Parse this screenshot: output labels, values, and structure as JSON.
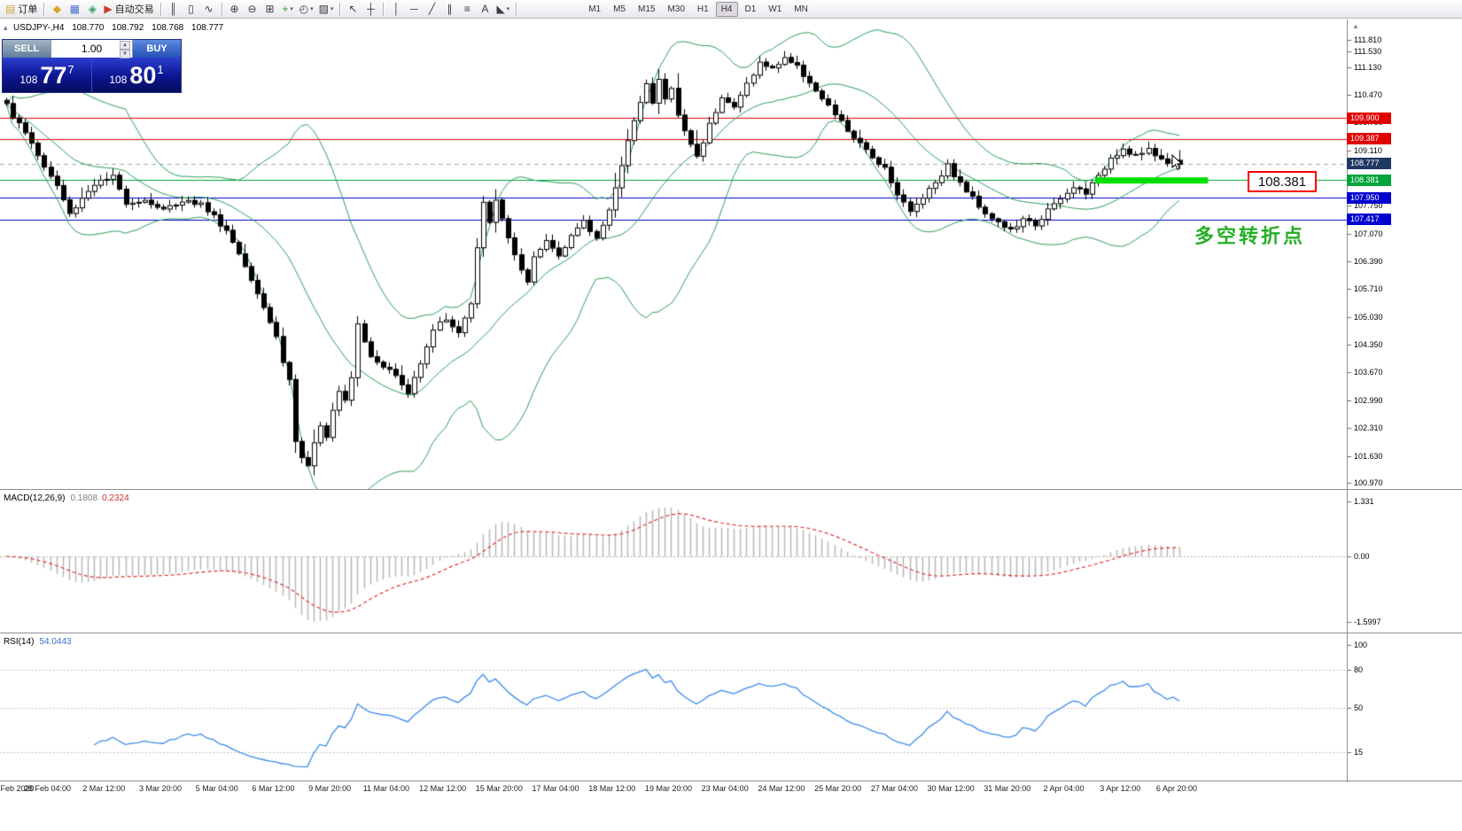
{
  "colors": {
    "up_candle": "#ffffff",
    "down_candle": "#000000",
    "candle_border": "#000000",
    "bollinger": "#2ca05a",
    "macd_hist": "#b4b4b4",
    "macd_signal": "#e03030",
    "rsi_line": "#3b8beb",
    "highlight_green": "#00dd00",
    "level_red": "#e00000",
    "level_blue": "#0000d0",
    "level_green": "#00a43b",
    "bid_badge": "#1f3864"
  },
  "toolbar": {
    "items": [
      {
        "name": "new-order-button",
        "glyph": "▤",
        "glyph_color": "#caa53c",
        "label": "订单"
      },
      {
        "type": "sep"
      },
      {
        "name": "market-watch-button",
        "glyph": "◆",
        "glyph_color": "#d9a520"
      },
      {
        "name": "data-window-button",
        "glyph": "▦",
        "glyph_color": "#4a6fd0"
      },
      {
        "name": "navigator-button",
        "glyph": "◈",
        "glyph_color": "#2f9e68"
      },
      {
        "name": "autotrade-button",
        "glyph": "▶",
        "glyph_color": "#cf3a2a",
        "label": "自动交易"
      },
      {
        "type": "sep"
      },
      {
        "name": "chart-bars-button",
        "glyph": "║"
      },
      {
        "name": "chart-candles-button",
        "glyph": "▯"
      },
      {
        "name": "chart-line-button",
        "glyph": "∿"
      },
      {
        "type": "sep"
      },
      {
        "name": "zoom-in-button",
        "glyph": "⊕"
      },
      {
        "name": "zoom-out-button",
        "glyph": "⊖"
      },
      {
        "name": "tile-windows-button",
        "glyph": "⊞"
      },
      {
        "name": "indicators-button",
        "glyph": "+",
        "glyph_color": "#1d9e3c",
        "caret": true
      },
      {
        "name": "periods-button",
        "glyph": "◴",
        "caret": true
      },
      {
        "name": "templates-button",
        "glyph": "▨",
        "caret": true
      },
      {
        "type": "sep"
      },
      {
        "name": "cursor-button",
        "glyph": "↖"
      },
      {
        "name": "crosshair-button",
        "glyph": "┼"
      },
      {
        "type": "sep"
      },
      {
        "name": "vertical-line-button",
        "glyph": "│"
      },
      {
        "name": "horizontal-line-button",
        "glyph": "─"
      },
      {
        "name": "trendline-button",
        "glyph": "╱"
      },
      {
        "name": "channel-button",
        "glyph": "∥"
      },
      {
        "name": "fibonacci-button",
        "glyph": "≡"
      },
      {
        "name": "text-button",
        "glyph": "A"
      },
      {
        "name": "arrows-button",
        "glyph": "◣",
        "caret": true
      },
      {
        "type": "sep"
      }
    ],
    "timeframes": [
      "M1",
      "M5",
      "M15",
      "M30",
      "H1",
      "H4",
      "D1",
      "W1",
      "MN"
    ],
    "active_timeframe": "H4"
  },
  "chart_header": {
    "symbol_tf": "USDJPY-,H4",
    "o": "108.770",
    "h": "108.792",
    "l": "108.768",
    "c": "108.777"
  },
  "trade_panel": {
    "sell_label": "SELL",
    "buy_label": "BUY",
    "volume": "1.00",
    "sell_price": {
      "big": "108",
      "mid": "77",
      "sup": "7"
    },
    "buy_price": {
      "big": "108",
      "mid": "80",
      "sup": "1"
    }
  },
  "annotations": {
    "price_tag": "108.381",
    "turning_point_text": "多空转折点"
  },
  "chart_data": [
    {
      "type": "candlestick",
      "title": "USDJPY-,H4",
      "symbol": "USDJPY",
      "timeframe": "H4",
      "ohlc": {
        "open": "108.770",
        "high": "108.792",
        "low": "108.768",
        "close": "108.777"
      },
      "candle_count": 188,
      "render_seed": 1337,
      "y_range": [
        100.75,
        112.2
      ],
      "y_ticks": [
        "111.810",
        "111.530",
        "111.130",
        "110.470",
        "109.790",
        "109.110",
        "107.750",
        "107.070",
        "106.390",
        "105.710",
        "105.030",
        "104.350",
        "103.670",
        "102.990",
        "102.310",
        "101.630",
        "100.970"
      ],
      "x_labels": [
        "28 Feb 2020",
        "28 Feb 04:00",
        "2 Mar 12:00",
        "3 Mar 20:00",
        "5 Mar 04:00",
        "6 Mar 12:00",
        "9 Mar 20:00",
        "11 Mar 04:00",
        "12 Mar 12:00",
        "15 Mar 20:00",
        "17 Mar 04:00",
        "18 Mar 12:00",
        "19 Mar 20:00",
        "23 Mar 04:00",
        "24 Mar 12:00",
        "25 Mar 20:00",
        "27 Mar 04:00",
        "30 Mar 12:00",
        "31 Mar 20:00",
        "2 Apr 04:00",
        "3 Apr 12:00",
        "6 Apr 20:00"
      ],
      "bollinger": {
        "period": 20,
        "deviation": 2
      },
      "close_anchors": [
        [
          0,
          110.3
        ],
        [
          1,
          109.95
        ],
        [
          2,
          109.75
        ],
        [
          4,
          109.3
        ],
        [
          6,
          108.7
        ],
        [
          8,
          108.25
        ],
        [
          10,
          107.55
        ],
        [
          12,
          107.95
        ],
        [
          14,
          108.3
        ],
        [
          17,
          108.45
        ],
        [
          19,
          107.85
        ],
        [
          22,
          107.9
        ],
        [
          25,
          107.65
        ],
        [
          28,
          107.9
        ],
        [
          31,
          107.8
        ],
        [
          33,
          107.5
        ],
        [
          35,
          107.15
        ],
        [
          37,
          106.6
        ],
        [
          39,
          106.0
        ],
        [
          41,
          105.3
        ],
        [
          43,
          104.55
        ],
        [
          44,
          103.95
        ],
        [
          45,
          103.5
        ],
        [
          46,
          102.0
        ],
        [
          47,
          101.6
        ],
        [
          48,
          101.35
        ],
        [
          49,
          101.9
        ],
        [
          50,
          102.35
        ],
        [
          51,
          102.15
        ],
        [
          52,
          102.8
        ],
        [
          53,
          103.25
        ],
        [
          54,
          103.05
        ],
        [
          55,
          103.6
        ],
        [
          56,
          104.9
        ],
        [
          57,
          104.45
        ],
        [
          58,
          104.1
        ],
        [
          60,
          103.85
        ],
        [
          62,
          103.6
        ],
        [
          64,
          103.15
        ],
        [
          66,
          103.95
        ],
        [
          68,
          104.75
        ],
        [
          70,
          105.0
        ],
        [
          72,
          104.65
        ],
        [
          74,
          105.35
        ],
        [
          75,
          106.7
        ],
        [
          76,
          107.8
        ],
        [
          77,
          107.4
        ],
        [
          78,
          107.85
        ],
        [
          80,
          107.0
        ],
        [
          82,
          106.15
        ],
        [
          83,
          105.85
        ],
        [
          84,
          106.45
        ],
        [
          86,
          106.9
        ],
        [
          88,
          106.55
        ],
        [
          90,
          107.05
        ],
        [
          92,
          107.35
        ],
        [
          94,
          106.95
        ],
        [
          96,
          107.7
        ],
        [
          98,
          108.7
        ],
        [
          100,
          109.9
        ],
        [
          101,
          110.35
        ],
        [
          102,
          110.75
        ],
        [
          103,
          110.25
        ],
        [
          104,
          110.85
        ],
        [
          105,
          110.35
        ],
        [
          106,
          110.65
        ],
        [
          107,
          109.95
        ],
        [
          108,
          109.6
        ],
        [
          110,
          108.95
        ],
        [
          112,
          109.75
        ],
        [
          114,
          110.45
        ],
        [
          116,
          110.15
        ],
        [
          118,
          110.75
        ],
        [
          120,
          111.25
        ],
        [
          122,
          111.1
        ],
        [
          124,
          111.4
        ],
        [
          126,
          111.15
        ],
        [
          128,
          110.8
        ],
        [
          130,
          110.35
        ],
        [
          132,
          110.0
        ],
        [
          134,
          109.6
        ],
        [
          136,
          109.25
        ],
        [
          138,
          108.95
        ],
        [
          140,
          108.7
        ],
        [
          142,
          108.05
        ],
        [
          144,
          107.6
        ],
        [
          146,
          108.0
        ],
        [
          148,
          108.35
        ],
        [
          150,
          108.75
        ],
        [
          152,
          108.3
        ],
        [
          154,
          107.95
        ],
        [
          156,
          107.6
        ],
        [
          158,
          107.35
        ],
        [
          160,
          107.15
        ],
        [
          162,
          107.4
        ],
        [
          164,
          107.3
        ],
        [
          166,
          107.65
        ],
        [
          168,
          107.9
        ],
        [
          170,
          108.2
        ],
        [
          172,
          108.1
        ],
        [
          174,
          108.45
        ],
        [
          176,
          108.95
        ],
        [
          178,
          109.15
        ],
        [
          180,
          109.0
        ],
        [
          182,
          109.1
        ],
        [
          184,
          108.9
        ],
        [
          186,
          108.82
        ],
        [
          187,
          108.777
        ]
      ],
      "levels": [
        {
          "label": "109.900",
          "price": 109.9,
          "line_color": "#e00000",
          "badge_bg": "#e00000",
          "style": "solid"
        },
        {
          "label": "109.387",
          "price": 109.387,
          "line_color": "#e00000",
          "badge_bg": "#e00000",
          "style": "solid"
        },
        {
          "label": "108.777",
          "price": 108.777,
          "line_color": "#a8a8a8",
          "badge_bg": "#1f3864",
          "style": "dashed"
        },
        {
          "label": "108.381",
          "price": 108.381,
          "line_color": "#00a43b",
          "badge_bg": "#00a43b",
          "style": "solid"
        },
        {
          "label": "107.950",
          "price": 107.95,
          "line_color": "#0000d0",
          "badge_bg": "#0000d0",
          "style": "solid"
        },
        {
          "label": "107.417",
          "price": 107.417,
          "line_color": "#0000d0",
          "badge_bg": "#0000d0",
          "style": "solid"
        }
      ],
      "highlight": {
        "price": 108.381,
        "start_index": 174,
        "end_index": 192,
        "color": "#00dd00"
      }
    },
    {
      "type": "bar",
      "name": "MACD(12,26,9)",
      "value_main": "0.1808",
      "value_signal": "0.2324",
      "params": {
        "fast": 12,
        "slow": 26,
        "signal": 9
      },
      "source": "close",
      "y_ticks": [
        {
          "label": "1.331",
          "value": 1.331
        },
        {
          "label": "0.00",
          "value": 0
        },
        {
          "label": "-1.5997",
          "value": -1.5997
        }
      ]
    },
    {
      "type": "line",
      "name": "RSI(14)",
      "value": "54.0443",
      "period": 14,
      "source": "close",
      "y_ticks": [
        {
          "label": "100",
          "value": 100
        },
        {
          "label": "80",
          "value": 80
        },
        {
          "label": "50",
          "value": 50
        },
        {
          "label": "15",
          "value": 15
        }
      ],
      "level_lines": [
        80,
        50,
        15
      ]
    }
  ]
}
